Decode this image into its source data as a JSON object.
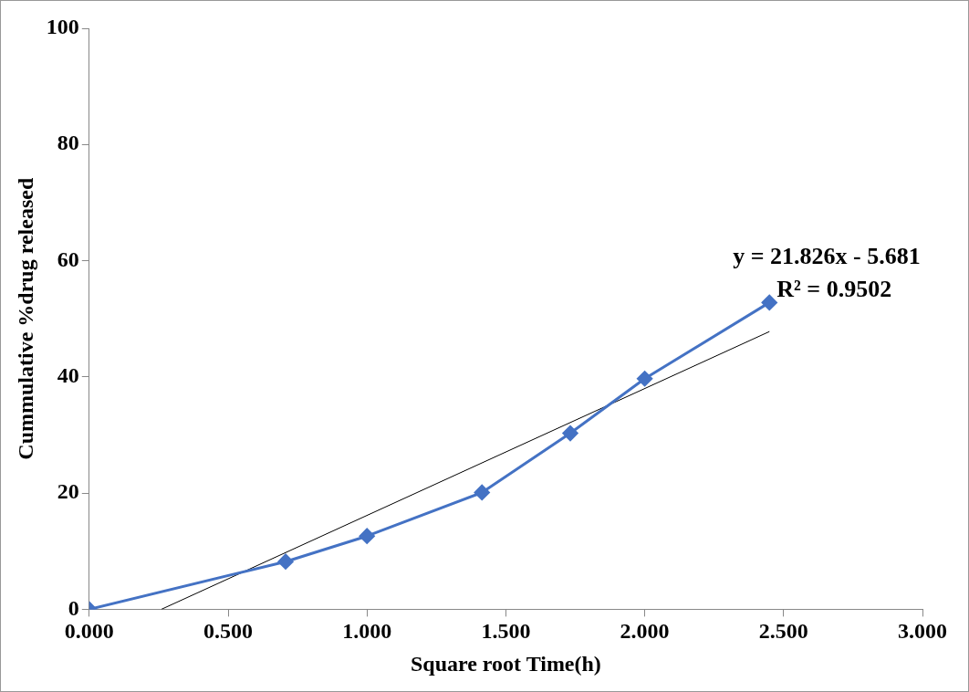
{
  "chart_data": {
    "type": "line",
    "xlabel": "Square root Time(h)",
    "ylabel": "Cummulative %drug released",
    "x": [
      0,
      0.707,
      1,
      1.414,
      1.732,
      2,
      2.449
    ],
    "series": [
      {
        "color": "#4472c4",
        "values": [
          0,
          8.2,
          12.6,
          20.1,
          30.3,
          39.7,
          52.8
        ],
        "marker": "diamond"
      },
      {
        "type": "line",
        "color": "#000000",
        "x": [
          0.26,
          2.449
        ],
        "values": [
          0,
          47.8
        ],
        "marker": "none"
      }
    ],
    "xlim": [
      0,
      3
    ],
    "xticks": [
      {
        "value": 0,
        "label": "0.000"
      },
      {
        "value": 0.5,
        "label": "0.500"
      },
      {
        "value": 1,
        "label": "1.000"
      },
      {
        "value": 1.5,
        "label": "1.500"
      },
      {
        "value": 2,
        "label": "2.000"
      },
      {
        "value": 2.5,
        "label": "2.500"
      },
      {
        "value": 3,
        "label": "3.000"
      }
    ],
    "ylim": [
      0,
      100
    ],
    "yticks": [
      0,
      20,
      40,
      60,
      80,
      100
    ],
    "grid": false,
    "legend": false,
    "annotations": [
      "y = 21.826x - 5.681",
      "R² = 0.9502"
    ]
  }
}
